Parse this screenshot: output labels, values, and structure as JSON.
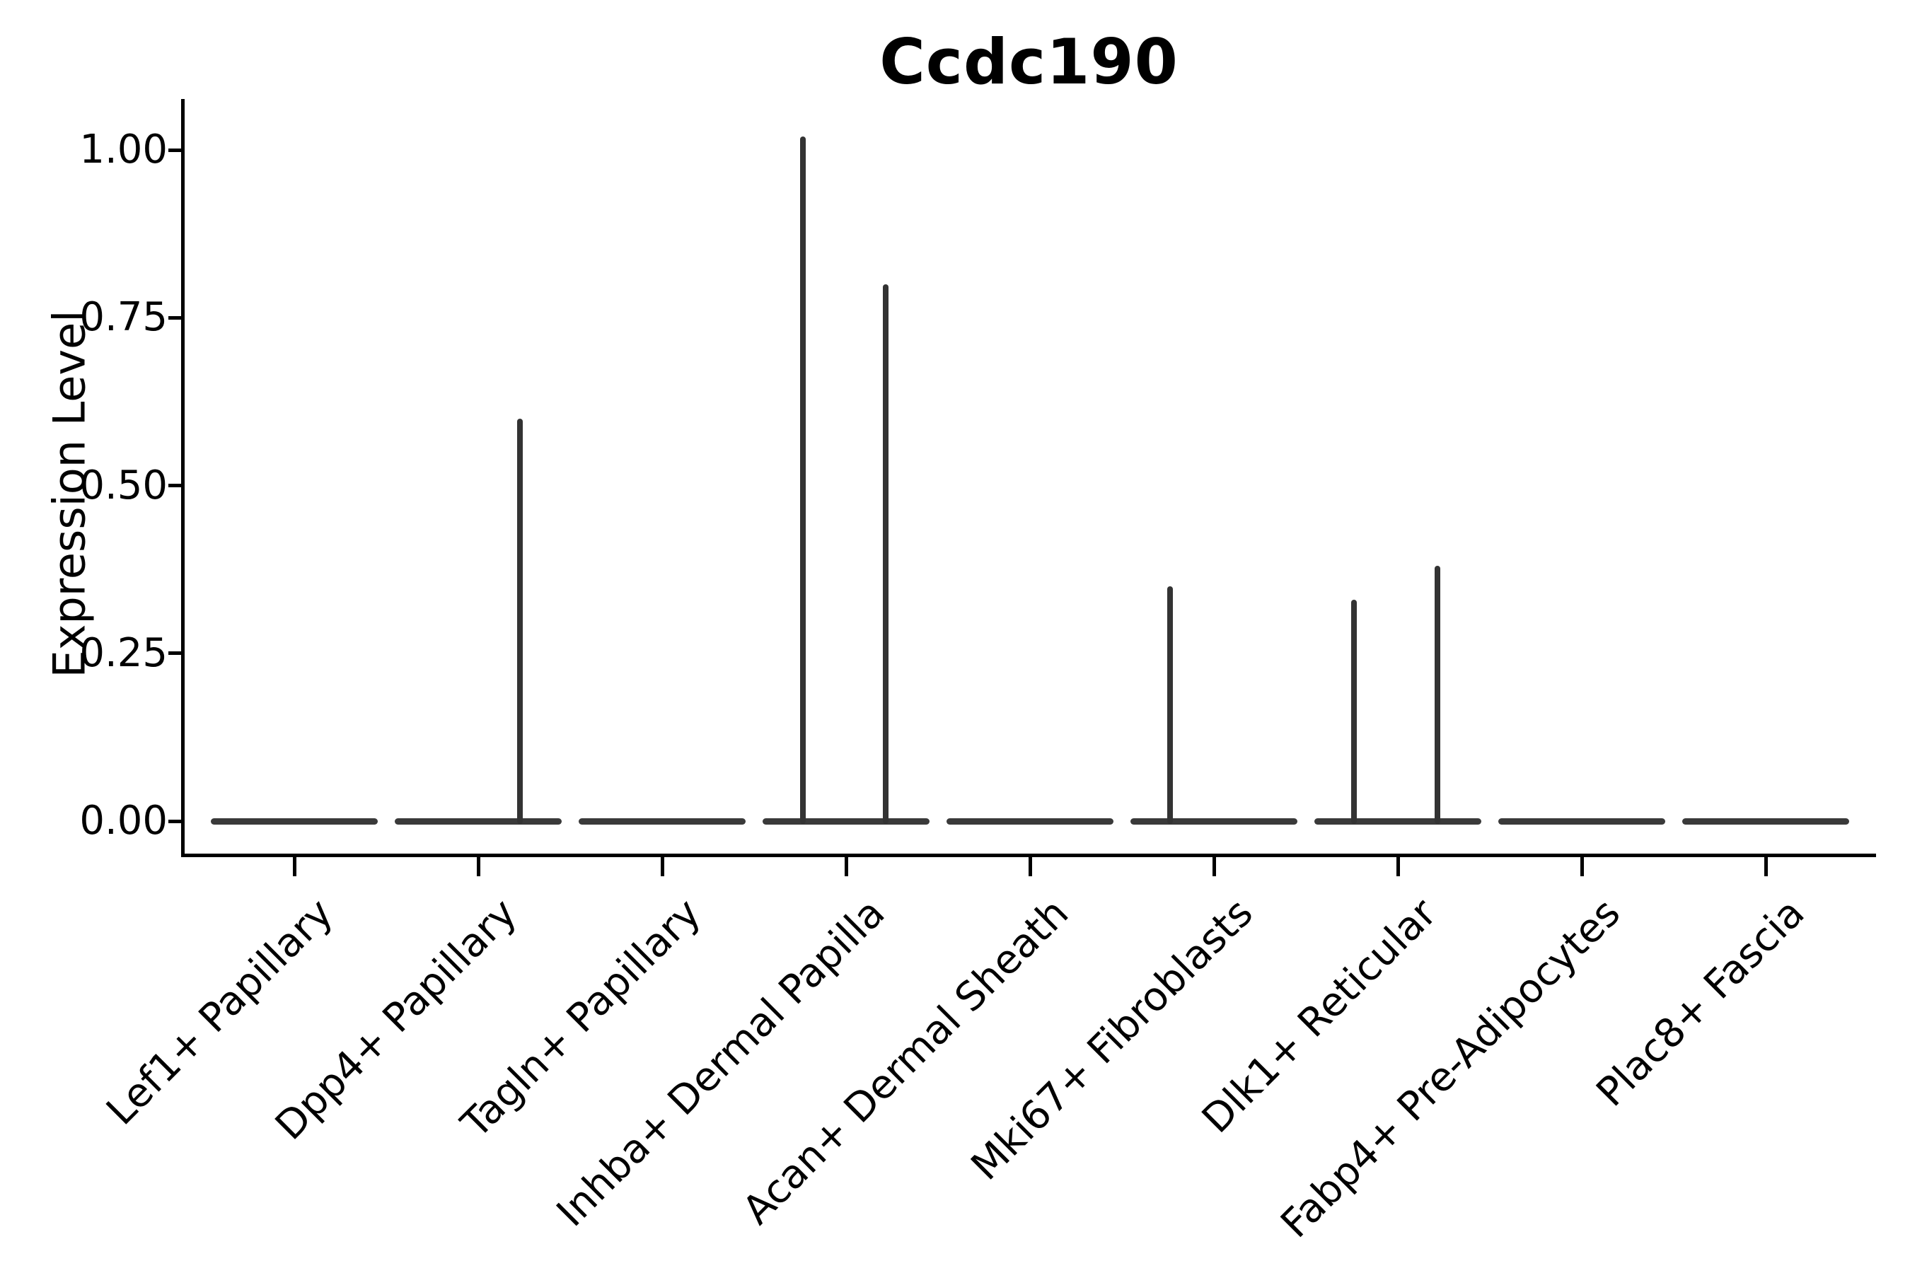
{
  "title": "Ccdc190",
  "axes": {
    "ylabel": "Expression Level",
    "yticklabels": [
      "0.00",
      "0.25",
      "0.50",
      "0.75",
      "1.00"
    ]
  },
  "colors": {
    "background": "#ffffff",
    "axis": "#000000",
    "violin": "#3a3a3a"
  },
  "chart_data": {
    "type": "violin",
    "title": "Ccdc190",
    "xlabel": "",
    "ylabel": "Expression Level",
    "ylim": [
      -0.05,
      1.07
    ],
    "yticks": [
      0,
      0.25,
      0.5,
      0.75,
      1.0
    ],
    "grid": false,
    "legend": "none",
    "categories": [
      "Lef1+ Papillary",
      "Dpp4+ Papillary",
      "Tagln+ Papillary",
      "Inhba+ Dermal Papilla",
      "Acan+ Dermal Sheath",
      "Mki67+ Fibroblasts",
      "Dlk1+ Reticular",
      "Fabp4+ Pre-Adipocytes",
      "Plac8+ Fascia"
    ],
    "series": [
      {
        "name": "Lef1+ Papillary",
        "baseline_value": 0,
        "spikes": []
      },
      {
        "name": "Dpp4+ Papillary",
        "baseline_value": 0,
        "spikes": [
          {
            "offset_frac": 0.227,
            "value": 0.6
          }
        ]
      },
      {
        "name": "Tagln+ Papillary",
        "baseline_value": 0,
        "spikes": []
      },
      {
        "name": "Inhba+ Dermal Papilla",
        "baseline_value": 0,
        "spikes": [
          {
            "offset_frac": -0.235,
            "value": 1.02
          },
          {
            "offset_frac": 0.215,
            "value": 0.8
          }
        ]
      },
      {
        "name": "Acan+ Dermal Sheath",
        "baseline_value": 0,
        "spikes": []
      },
      {
        "name": "Mki67+ Fibroblasts",
        "baseline_value": 0,
        "spikes": [
          {
            "offset_frac": -0.238,
            "value": 0.35
          }
        ]
      },
      {
        "name": "Dlk1+ Reticular",
        "baseline_value": 0,
        "spikes": [
          {
            "offset_frac": -0.238,
            "value": 0.33
          },
          {
            "offset_frac": 0.215,
            "value": 0.38
          }
        ]
      },
      {
        "name": "Fabp4+ Pre-Adipocytes",
        "baseline_value": 0,
        "spikes": []
      },
      {
        "name": "Plac8+ Fascia",
        "baseline_value": 0,
        "spikes": []
      }
    ]
  }
}
